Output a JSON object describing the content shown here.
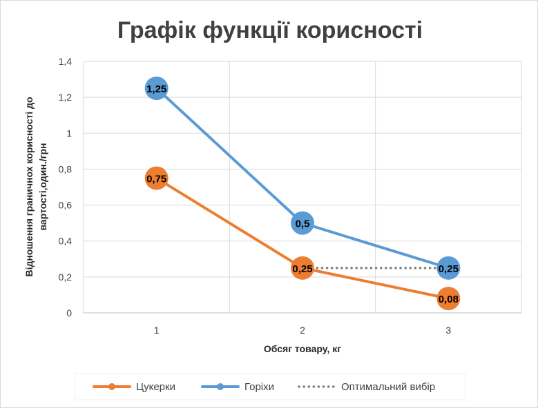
{
  "chart_data": {
    "type": "line",
    "title": "Графік функції корисності",
    "xlabel": "Обсяг товару, кг",
    "ylabel_lines": [
      "Відношення граничнох корисності до",
      "вартості,один./грн"
    ],
    "x": [
      1,
      2,
      3
    ],
    "x_tick_labels": [
      "1",
      "2",
      "3"
    ],
    "ylim": [
      0,
      1.4
    ],
    "y_ticks": [
      0,
      0.2,
      0.4,
      0.6,
      0.8,
      1,
      1.2,
      1.4
    ],
    "y_tick_labels": [
      "0",
      "0,2",
      "0,4",
      "0,6",
      "0,8",
      "1",
      "1,2",
      "1,4"
    ],
    "grid": true,
    "legend_position": "bottom",
    "series": [
      {
        "name": "Цукерки",
        "color": "#ed7d31",
        "x": [
          1,
          2,
          3
        ],
        "values": [
          0.75,
          0.25,
          0.08
        ],
        "labels": [
          "0,75",
          "0,25",
          "0,08"
        ],
        "style": "solid",
        "markers": true
      },
      {
        "name": "Горіхи",
        "color": "#5b9bd5",
        "x": [
          1,
          2,
          3
        ],
        "values": [
          1.25,
          0.5,
          0.25
        ],
        "labels": [
          "1,25",
          "0,5",
          "0,25"
        ],
        "style": "solid",
        "markers": true
      },
      {
        "name": "Оптимальний вибір",
        "color": "#7f7f7f",
        "x": [
          2,
          3
        ],
        "values": [
          0.25,
          0.25
        ],
        "labels": [],
        "style": "dotted",
        "markers": false
      }
    ]
  }
}
